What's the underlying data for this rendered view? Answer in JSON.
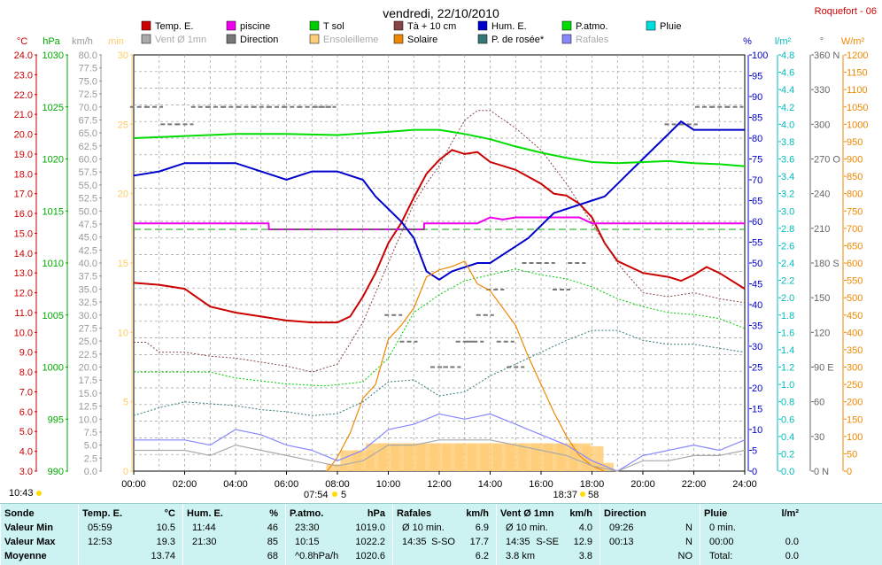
{
  "title": "vendredi, 22/10/2010",
  "station": "Roquefort - 06",
  "colors": {
    "temp": "#cc0000",
    "piscine": "#ee00ee",
    "tsol": "#00cc00",
    "t10": "#884444",
    "hum": "#0000cc",
    "patmo": "#00dd00",
    "pluie": "#00dddd",
    "vent": "#aaaaaa",
    "direction": "#777777",
    "ensol": "#ffcc77",
    "solaire": "#ee8800",
    "rosee": "#337777",
    "rafales": "#8888ff"
  },
  "legend": [
    {
      "label": "Temp. E.",
      "color": "#cc0000",
      "muted": false
    },
    {
      "label": "piscine",
      "color": "#ee00ee",
      "muted": false
    },
    {
      "label": "T sol",
      "color": "#00cc00",
      "muted": false
    },
    {
      "label": "Tà + 10 cm",
      "color": "#884444",
      "muted": false
    },
    {
      "label": "Hum. E.",
      "color": "#0000cc",
      "muted": false
    },
    {
      "label": "P.atmo.",
      "color": "#00dd00",
      "muted": false
    },
    {
      "label": "Pluie",
      "color": "#00dddd",
      "muted": false
    },
    {
      "label": "Vent Ø 1mn",
      "color": "#aaaaaa",
      "muted": true
    },
    {
      "label": "Direction",
      "color": "#777777",
      "muted": false
    },
    {
      "label": "Ensoleilleme",
      "color": "#ffcc77",
      "muted": true
    },
    {
      "label": "Solaire",
      "color": "#ee8800",
      "muted": false
    },
    {
      "label": "P. de rosée*",
      "color": "#337777",
      "muted": false
    },
    {
      "label": "Rafales",
      "color": "#8888ff",
      "muted": true
    }
  ],
  "axes": {
    "temp": {
      "unit": "°C",
      "color": "#cc0000",
      "ticks": [
        "3.0",
        "4.0",
        "5.0",
        "6.0",
        "7.0",
        "8.0",
        "9.0",
        "10.0",
        "11.0",
        "12.0",
        "13.0",
        "14.0",
        "15.0",
        "16.0",
        "17.0",
        "18.0",
        "19.0",
        "20.0",
        "21.0",
        "22.0",
        "23.0",
        "24.0"
      ],
      "range": [
        3,
        24
      ]
    },
    "press": {
      "unit": "hPa",
      "color": "#00aa00",
      "ticks": [
        "990",
        "995",
        "1000",
        "1005",
        "1010",
        "1015",
        "1020",
        "1025",
        "1030"
      ],
      "range": [
        990,
        1030
      ]
    },
    "wind": {
      "unit": "km/h",
      "color": "#999999",
      "ticks": [
        "0.0",
        "2.5",
        "5.0",
        "7.5",
        "10.0",
        "12.5",
        "15.0",
        "17.5",
        "20.0",
        "22.5",
        "25.0",
        "27.5",
        "30.0",
        "32.5",
        "35.0",
        "37.5",
        "40.0",
        "42.5",
        "45.0",
        "47.5",
        "50.0",
        "52.5",
        "55.0",
        "57.5",
        "60.0",
        "62.5",
        "65.0",
        "67.5",
        "70.0",
        "72.5",
        "75.0",
        "77.5",
        "80.0"
      ],
      "range": [
        0,
        80
      ]
    },
    "sun": {
      "unit": "min",
      "color": "#ffcc66",
      "ticks": [
        "0",
        "5",
        "10",
        "15",
        "20",
        "25",
        "30"
      ],
      "range": [
        0,
        30
      ]
    },
    "hum": {
      "unit": "%",
      "color": "#0000cc",
      "ticks": [
        "0",
        "5",
        "10",
        "15",
        "20",
        "25",
        "30",
        "35",
        "40",
        "45",
        "50",
        "55",
        "60",
        "65",
        "70",
        "75",
        "80",
        "85",
        "90",
        "95",
        "100"
      ],
      "range": [
        0,
        100
      ]
    },
    "rain": {
      "unit": "l/m²",
      "color": "#00bbbb",
      "ticks": [
        "0.0",
        "0.2",
        "0.4",
        "0.6",
        "0.8",
        "1.0",
        "1.2",
        "1.4",
        "1.6",
        "1.8",
        "2.0",
        "2.2",
        "2.4",
        "2.6",
        "2.8",
        "3.0",
        "3.2",
        "3.4",
        "3.6",
        "3.8",
        "4.0",
        "4.2",
        "4.4",
        "4.6",
        "4.8"
      ],
      "range": [
        0,
        5
      ]
    },
    "dir": {
      "unit": "°",
      "color": "#666666",
      "ticks": [
        "0 N",
        "30",
        "60",
        "90 E",
        "120",
        "150",
        "180 S",
        "210",
        "240",
        "270 O",
        "300",
        "330",
        "360 N"
      ],
      "range": [
        0,
        360
      ]
    },
    "solar": {
      "unit": "W/m²",
      "color": "#ee8800",
      "ticks": [
        "0",
        "50",
        "100",
        "150",
        "200",
        "250",
        "300",
        "350",
        "400",
        "450",
        "500",
        "550",
        "600",
        "650",
        "700",
        "750",
        "800",
        "850",
        "900",
        "950",
        "1000",
        "1050",
        "1100",
        "1150",
        "1200"
      ],
      "range": [
        0,
        1200
      ]
    }
  },
  "x_ticks": [
    "00:00",
    "02:00",
    "04:00",
    "06:00",
    "08:00",
    "10:00",
    "12:00",
    "14:00",
    "16:00",
    "18:00",
    "20:00",
    "22:00",
    "24:00"
  ],
  "sun_markers": {
    "daylength": "10:43",
    "sunrise": "07:54",
    "sunrise_extra": "5",
    "sunset": "18:37",
    "sunset_extra": "58"
  },
  "chart_data": {
    "type": "line",
    "x_unit": "hours",
    "x_range": [
      0,
      24
    ],
    "series": [
      {
        "name": "Temp. E.",
        "axis": "temp",
        "color": "#cc0000",
        "x": [
          0,
          1,
          2,
          3,
          4,
          5,
          6,
          7,
          8,
          8.5,
          9,
          9.5,
          10,
          10.5,
          11,
          11.5,
          12,
          12.5,
          13,
          13.5,
          14,
          15,
          16,
          16.5,
          17,
          17.5,
          18,
          18.5,
          19,
          20,
          21,
          21.5,
          22,
          22.5,
          23,
          24
        ],
        "y": [
          12.5,
          12.4,
          12.2,
          11.3,
          11.0,
          10.8,
          10.6,
          10.5,
          10.5,
          10.8,
          11.8,
          13.0,
          14.5,
          15.5,
          16.8,
          18.0,
          18.7,
          19.2,
          19.0,
          19.1,
          18.6,
          18.2,
          17.5,
          17.0,
          16.9,
          16.5,
          15.8,
          14.5,
          13.6,
          13.0,
          12.8,
          12.6,
          12.9,
          13.3,
          13.0,
          12.2
        ]
      },
      {
        "name": "piscine",
        "axis": "temp",
        "color": "#ee00ee",
        "x": [
          0,
          5.3,
          5.31,
          11.4,
          11.41,
          13.5,
          14,
          14.5,
          15,
          16,
          17.5,
          18,
          24
        ],
        "y": [
          15.5,
          15.5,
          15.2,
          15.2,
          15.5,
          15.5,
          15.8,
          15.7,
          15.8,
          15.8,
          15.8,
          15.5,
          15.5
        ]
      },
      {
        "name": "T sol",
        "axis": "temp",
        "color": "#00cc00",
        "x": [
          0,
          2,
          3,
          4,
          6,
          7.5,
          9,
          10,
          11,
          12,
          13,
          14,
          15,
          16,
          17,
          18,
          19,
          20,
          21,
          22,
          23,
          24
        ],
        "y": [
          8.0,
          8.0,
          8.0,
          7.7,
          7.4,
          7.3,
          7.5,
          8.7,
          11.0,
          11.9,
          12.6,
          12.9,
          13.2,
          12.9,
          12.7,
          12.3,
          11.7,
          11.3,
          11.0,
          10.9,
          10.7,
          10.2
        ]
      },
      {
        "name": "Tà + 10 cm",
        "axis": "temp",
        "color": "#884444",
        "x": [
          0,
          0.5,
          1,
          2,
          3,
          4,
          5,
          6,
          7,
          8,
          9,
          10,
          11,
          11.5,
          12,
          12.5,
          13,
          13.5,
          14,
          15,
          16,
          17,
          18,
          19,
          20,
          21,
          22,
          23,
          24
        ],
        "y": [
          9.5,
          9.5,
          9.0,
          9.0,
          8.8,
          8.7,
          8.5,
          8.3,
          8.0,
          8.4,
          10.5,
          13.5,
          16.5,
          17.5,
          18.4,
          19.6,
          20.7,
          21.2,
          21.2,
          20.3,
          19.2,
          17.5,
          15.5,
          13.5,
          12.0,
          11.8,
          12.0,
          11.7,
          11.5
        ]
      },
      {
        "name": "Hum. E.",
        "axis": "hum",
        "color": "#0000cc",
        "x": [
          0,
          1,
          2,
          3,
          4,
          5,
          6,
          7,
          8,
          9,
          9.5,
          10,
          10.5,
          11,
          11.5,
          12,
          12.5,
          13,
          13.5,
          14,
          14.5,
          15,
          15.5,
          16,
          16.5,
          17,
          17.5,
          18,
          18.5,
          19,
          19.5,
          20,
          20.5,
          21,
          21.5,
          22,
          23,
          24
        ],
        "y": [
          71,
          72,
          74,
          74,
          74,
          72,
          70,
          72,
          72,
          70,
          66,
          63,
          60,
          56,
          48,
          46,
          48,
          49,
          50,
          50,
          52,
          54,
          56,
          59,
          62,
          63,
          64,
          65,
          66,
          69,
          72,
          75,
          78,
          81,
          84,
          82,
          82,
          82
        ]
      },
      {
        "name": "P.atmo.",
        "axis": "press",
        "color": "#00dd00",
        "x": [
          0,
          2,
          4,
          6,
          8,
          10,
          11,
          12,
          13,
          14,
          15,
          16,
          17,
          18,
          19,
          20,
          21,
          22,
          23,
          24
        ],
        "y": [
          1022.0,
          1022.2,
          1022.4,
          1022.4,
          1022.3,
          1022.6,
          1022.8,
          1022.8,
          1022.4,
          1021.9,
          1021.2,
          1020.6,
          1020.1,
          1019.7,
          1019.6,
          1019.7,
          1019.8,
          1019.6,
          1019.5,
          1019.3
        ]
      },
      {
        "name": "P. de rosée*",
        "axis": "temp",
        "color": "#337777",
        "x": [
          0,
          1,
          2,
          3,
          4,
          5,
          6,
          7,
          8,
          9,
          10,
          11,
          12,
          13,
          14,
          15,
          16,
          17,
          18,
          19,
          20,
          21,
          22,
          23,
          24
        ],
        "y": [
          5.8,
          6.2,
          6.5,
          6.4,
          6.3,
          6.1,
          6.0,
          5.8,
          5.9,
          6.5,
          7.5,
          7.6,
          6.8,
          7.0,
          7.8,
          8.4,
          9.0,
          9.6,
          10.1,
          10.1,
          9.6,
          9.4,
          9.4,
          9.2,
          9.0
        ]
      },
      {
        "name": "Solaire",
        "axis": "solar",
        "color": "#ee8800",
        "x": [
          7.6,
          8,
          8.5,
          9,
          9.5,
          10,
          10.5,
          11,
          11.5,
          12,
          12.5,
          13,
          13.5,
          14,
          14.5,
          15,
          15.5,
          16,
          16.5,
          17,
          17.5,
          18,
          18.5
        ],
        "y": [
          0,
          40,
          110,
          210,
          250,
          380,
          420,
          470,
          560,
          580,
          590,
          605,
          540,
          520,
          470,
          420,
          330,
          250,
          170,
          100,
          45,
          15,
          0
        ]
      },
      {
        "name": "Rafales",
        "axis": "wind",
        "color": "#8888ff",
        "x": [
          0,
          1,
          2,
          3,
          4,
          5,
          6,
          7,
          8,
          9,
          10,
          11,
          12,
          13,
          14,
          15,
          16,
          17,
          18,
          19,
          20,
          21,
          22,
          23,
          24
        ],
        "y": [
          6,
          6,
          6,
          5,
          8,
          7,
          5,
          4,
          2,
          4,
          8,
          9,
          11,
          10,
          11,
          9,
          7,
          5,
          2,
          0,
          3,
          4,
          5,
          4,
          6
        ]
      },
      {
        "name": "Vent Ø 1mn",
        "axis": "wind",
        "color": "#aaaaaa",
        "x": [
          0,
          1,
          2,
          3,
          4,
          5,
          6,
          7,
          8,
          9,
          10,
          11,
          12,
          13,
          14,
          15,
          16,
          17,
          18,
          19,
          20,
          21,
          22,
          23,
          24
        ],
        "y": [
          4,
          4,
          4,
          3,
          5,
          4,
          3,
          2,
          1,
          2,
          5,
          5,
          6,
          6,
          6,
          5,
          4,
          3,
          1,
          0,
          2,
          2,
          3,
          3,
          4
        ]
      }
    ],
    "direction_points": {
      "axis": "dir",
      "color": "#777777",
      "x": [
        0.2,
        0.8,
        1.4,
        2.0,
        2.6,
        3.2,
        3.8,
        4.4,
        5.0,
        5.6,
        6.2,
        6.8,
        7.4,
        7.6,
        10.2,
        10.8,
        12.0,
        12.5,
        13.0,
        13.4,
        13.8,
        14.2,
        14.6,
        15.0,
        15.6,
        16.2,
        16.8,
        17.4,
        21.2,
        21.8,
        22.4,
        23.0,
        23.6
      ],
      "y": [
        315,
        315,
        300,
        300,
        315,
        315,
        315,
        315,
        315,
        315,
        315,
        315,
        315,
        315,
        135,
        112,
        90,
        90,
        112,
        112,
        135,
        157,
        112,
        90,
        180,
        180,
        157,
        180,
        300,
        300,
        315,
        315,
        315
      ]
    },
    "sunshine_bars": {
      "axis": "sun",
      "color": "#ffcc77",
      "x": [
        7.95,
        8.5,
        9.0,
        9.5,
        10.0,
        10.5,
        11.0,
        11.5,
        12.0,
        12.5,
        13.0,
        13.5,
        14.0,
        14.5,
        15.0,
        15.5,
        16.0,
        16.5,
        17.0,
        17.5,
        18.0,
        18.4
      ],
      "y": [
        0.5,
        1.5,
        1.5,
        2.0,
        2.0,
        2.0,
        2.0,
        2.0,
        2.0,
        2.0,
        2.0,
        2.0,
        2.0,
        2.0,
        2.0,
        2.0,
        2.0,
        2.0,
        2.0,
        2.0,
        1.8,
        0.6
      ]
    }
  },
  "footer": {
    "row_labels": [
      "Sonde",
      "Valeur Min",
      "Valeur Max",
      "Moyenne"
    ],
    "columns": [
      {
        "head": "Temp. E.",
        "unit": "°C",
        "rows": [
          [
            "05:59",
            "",
            "10.5"
          ],
          [
            "12:53",
            "",
            "19.3"
          ],
          [
            "",
            "",
            "13.74"
          ]
        ]
      },
      {
        "head": "Hum. E.",
        "unit": "%",
        "rows": [
          [
            "11:44",
            "",
            "46"
          ],
          [
            "21:30",
            "",
            "85"
          ],
          [
            "",
            "",
            "68"
          ]
        ]
      },
      {
        "head": "P.atmo.",
        "unit": "hPa",
        "rows": [
          [
            "23:30",
            "",
            "1019.0"
          ],
          [
            "10:15",
            "",
            "1022.2"
          ],
          [
            "^0.8hPa/h",
            "",
            "1020.6"
          ]
        ]
      },
      {
        "head": "Rafales",
        "unit": "km/h",
        "rows": [
          [
            "Ø 10 min.",
            "",
            "6.9"
          ],
          [
            "14:35",
            "S-SO",
            "17.7"
          ],
          [
            "",
            "",
            "6.2"
          ]
        ]
      },
      {
        "head": "Vent Ø 1mn",
        "unit": "km/h",
        "rows": [
          [
            "Ø 10 min.",
            "",
            "4.0"
          ],
          [
            "14:35",
            "S-SE",
            "12.9"
          ],
          [
            "3.8 km",
            "",
            "3.8"
          ]
        ]
      },
      {
        "head": "Direction",
        "unit": "",
        "rows": [
          [
            "09:26",
            "",
            "N"
          ],
          [
            "00:13",
            "",
            "N"
          ],
          [
            "",
            "",
            "NO"
          ]
        ]
      },
      {
        "head": "Pluie",
        "unit": "l/m²",
        "rows": [
          [
            "0 min.",
            "",
            ""
          ],
          [
            "00:00",
            "",
            "0.0"
          ],
          [
            "Total:",
            "",
            "0.0"
          ]
        ]
      }
    ]
  }
}
